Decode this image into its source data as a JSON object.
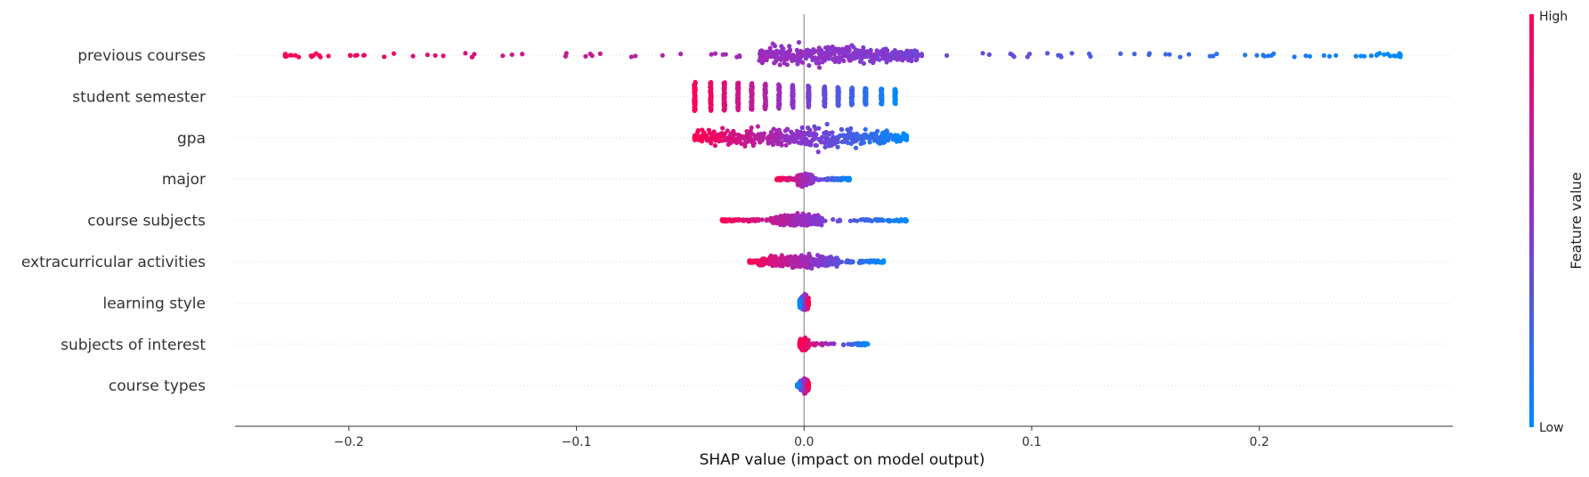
{
  "chart_data": {
    "type": "scatter",
    "subtype": "shap-beeswarm",
    "title": "",
    "xlabel": "SHAP value (impact on model output)",
    "ylabel": "",
    "xlim": [
      -0.25,
      0.285
    ],
    "xticks": [
      -0.2,
      -0.1,
      0.0,
      0.1,
      0.2
    ],
    "xtick_labels": [
      "−0.2",
      "−0.1",
      "0.0",
      "0.1",
      "0.2"
    ],
    "grid": false,
    "legend": "none",
    "colorbar": {
      "title": "Feature value",
      "high_label": "High",
      "low_label": "Low",
      "low_color": "#008bfb",
      "mid_color": "#8a35cd",
      "high_color": "#ff0052"
    },
    "features": [
      {
        "name": "previous courses",
        "min": -0.228,
        "max": 0.262,
        "mode": "beeswarm",
        "spread": 0.9,
        "core": [
          -0.02,
          0.05
        ],
        "direction": -1
      },
      {
        "name": "student semester",
        "min": -0.048,
        "max": 0.041,
        "mode": "stripes",
        "direction": -1,
        "stripes": [
          -0.048,
          -0.041,
          -0.035,
          -0.029,
          -0.023,
          -0.017,
          -0.011,
          -0.005,
          0.002,
          0.009,
          0.015,
          0.021,
          0.027,
          0.034,
          0.04
        ]
      },
      {
        "name": "gpa",
        "min": -0.048,
        "max": 0.045,
        "mode": "beeswarm",
        "spread": 1.0,
        "core": [
          -0.048,
          0.045
        ],
        "direction": -1
      },
      {
        "name": "major",
        "min": -0.012,
        "max": 0.02,
        "mode": "beeswarm",
        "spread": 0.5,
        "core": [
          -0.003,
          0.004
        ],
        "direction": -1
      },
      {
        "name": "course subjects",
        "min": -0.036,
        "max": 0.045,
        "mode": "beeswarm",
        "spread": 0.45,
        "core": [
          -0.015,
          0.008
        ],
        "direction": -1
      },
      {
        "name": "extracurricular activities",
        "min": -0.024,
        "max": 0.035,
        "mode": "beeswarm",
        "spread": 0.5,
        "core": [
          -0.02,
          0.015
        ],
        "direction": -1
      },
      {
        "name": "learning style",
        "min": -0.002,
        "max": 0.002,
        "mode": "beeswarm",
        "spread": 0.6,
        "core": [
          -0.002,
          0.002
        ],
        "direction": 1
      },
      {
        "name": "subjects of interest",
        "min": -0.002,
        "max": 0.028,
        "mode": "beeswarm",
        "spread": 0.45,
        "core": [
          -0.002,
          0.002
        ],
        "direction": -1
      },
      {
        "name": "course types",
        "min": -0.003,
        "max": 0.002,
        "mode": "beeswarm",
        "spread": 0.55,
        "core": [
          -0.002,
          0.002
        ],
        "direction": 1
      }
    ]
  }
}
